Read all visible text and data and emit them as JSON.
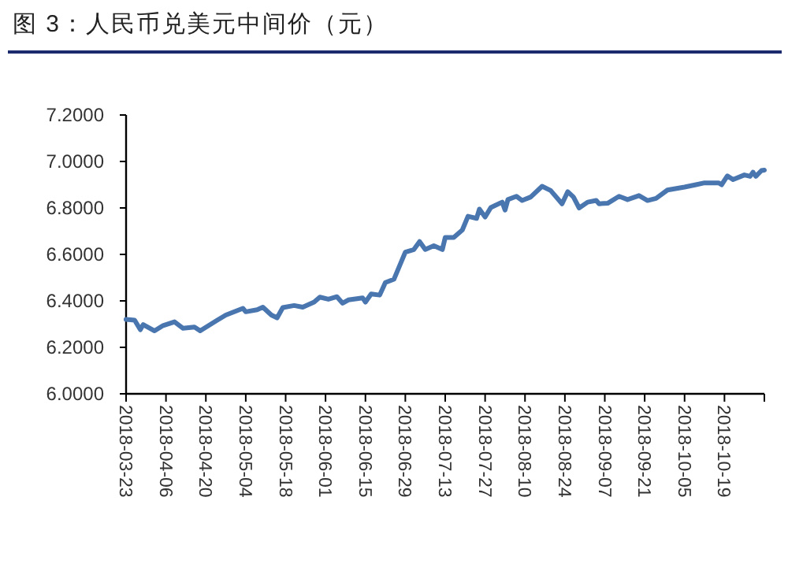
{
  "chart_data": {
    "type": "line",
    "title": "图 3：人民币兑美元中间价（元）",
    "x": [
      "2018-03-23",
      "2018-03-26",
      "2018-03-28",
      "2018-03-29",
      "2018-04-02",
      "2018-04-05",
      "2018-04-09",
      "2018-04-12",
      "2018-04-16",
      "2018-04-18",
      "2018-04-21",
      "2018-04-24",
      "2018-04-27",
      "2018-05-03",
      "2018-05-04",
      "2018-05-08",
      "2018-05-10",
      "2018-05-13",
      "2018-05-15",
      "2018-05-17",
      "2018-05-21",
      "2018-05-24",
      "2018-05-28",
      "2018-05-30",
      "2018-06-02",
      "2018-06-05",
      "2018-06-07",
      "2018-06-09",
      "2018-06-14",
      "2018-06-15",
      "2018-06-17",
      "2018-06-20",
      "2018-06-22",
      "2018-06-25",
      "2018-06-29",
      "2018-07-02",
      "2018-07-04",
      "2018-07-06",
      "2018-07-09",
      "2018-07-12",
      "2018-07-13",
      "2018-07-16",
      "2018-07-19",
      "2018-07-21",
      "2018-07-24",
      "2018-07-25",
      "2018-07-27",
      "2018-07-29",
      "2018-08-02",
      "2018-08-03",
      "2018-08-04",
      "2018-08-07",
      "2018-08-09",
      "2018-08-12",
      "2018-08-16",
      "2018-08-19",
      "2018-08-23",
      "2018-08-25",
      "2018-08-27",
      "2018-08-29",
      "2018-09-01",
      "2018-09-04",
      "2018-09-05",
      "2018-09-08",
      "2018-09-12",
      "2018-09-15",
      "2018-09-19",
      "2018-09-22",
      "2018-09-25",
      "2018-09-29",
      "2018-10-05",
      "2018-10-09",
      "2018-10-12",
      "2018-10-17",
      "2018-10-18",
      "2018-10-20",
      "2018-10-22",
      "2018-10-26",
      "2018-10-28",
      "2018-10-29",
      "2018-10-30",
      "2018-11-01",
      "2018-11-02"
    ],
    "series": [
      {
        "color": "#4a76b0",
        "values": [
          6.32,
          6.317,
          6.276,
          6.298,
          6.271,
          6.294,
          6.31,
          6.282,
          6.287,
          6.271,
          6.294,
          6.317,
          6.339,
          6.368,
          6.353,
          6.362,
          6.373,
          6.339,
          6.327,
          6.371,
          6.38,
          6.373,
          6.395,
          6.416,
          6.407,
          6.418,
          6.39,
          6.404,
          6.413,
          6.395,
          6.43,
          6.425,
          6.479,
          6.493,
          6.61,
          6.621,
          6.655,
          6.621,
          6.637,
          6.621,
          6.673,
          6.673,
          6.705,
          6.764,
          6.755,
          6.795,
          6.761,
          6.802,
          6.825,
          6.791,
          6.836,
          6.85,
          6.832,
          6.847,
          6.893,
          6.875,
          6.818,
          6.87,
          6.847,
          6.8,
          6.825,
          6.832,
          6.818,
          6.82,
          6.85,
          6.836,
          6.853,
          6.832,
          6.841,
          6.877,
          6.89,
          6.9,
          6.908,
          6.908,
          6.9,
          6.938,
          6.922,
          6.942,
          6.936,
          6.954,
          6.936,
          6.961,
          6.963
        ]
      }
    ],
    "xlim": [
      "2018-03-23",
      "2018-11-02"
    ],
    "xticks": [
      "2018-03-23",
      "2018-04-06",
      "2018-04-20",
      "2018-05-04",
      "2018-05-18",
      "2018-06-01",
      "2018-06-15",
      "2018-06-29",
      "2018-07-13",
      "2018-07-27",
      "2018-08-10",
      "2018-08-24",
      "2018-09-07",
      "2018-09-21",
      "2018-10-05",
      "2018-10-19",
      {
        "value": "2018-11-02",
        "label": null
      }
    ],
    "ylim": [
      6.0,
      7.2
    ],
    "yticks": [
      {
        "value": 6.0,
        "label": "6.0000"
      },
      {
        "value": 6.2,
        "label": "6.2000"
      },
      {
        "value": 6.4,
        "label": "6.4000"
      },
      {
        "value": 6.6,
        "label": "6.6000"
      },
      {
        "value": 6.8,
        "label": "6.8000"
      },
      {
        "value": 7.0,
        "label": "7.0000"
      },
      {
        "value": 7.2,
        "label": "7.2000"
      }
    ]
  }
}
